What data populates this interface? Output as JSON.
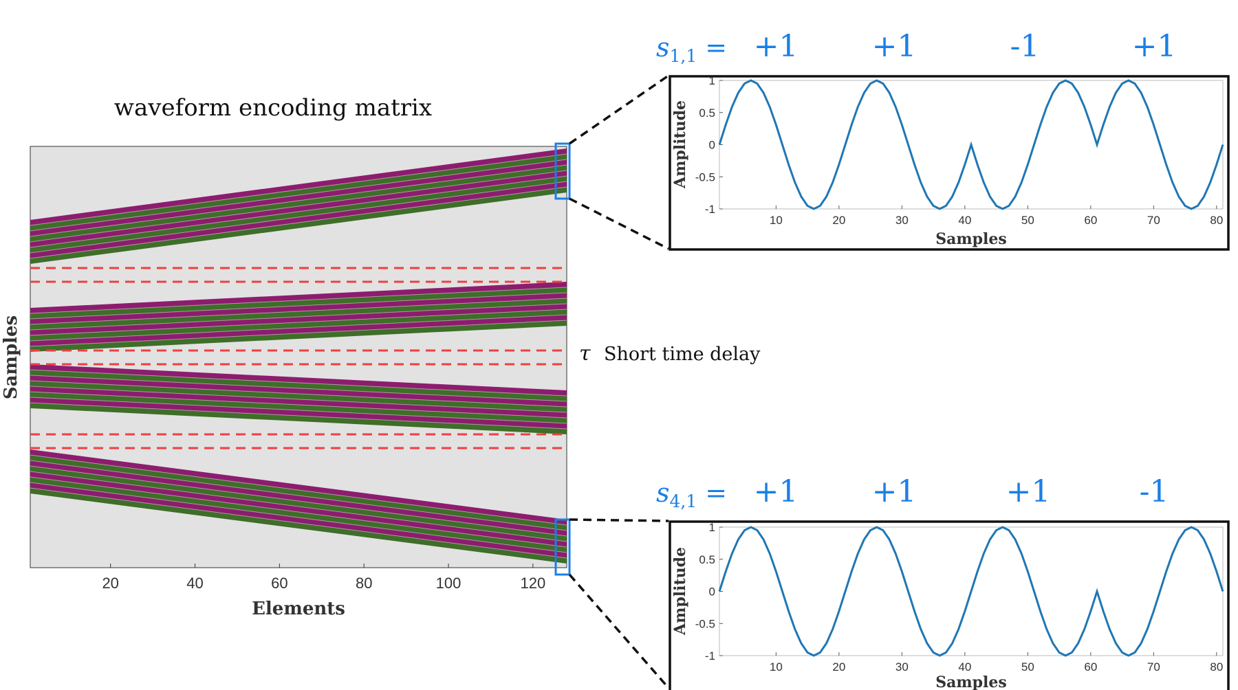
{
  "matrix": {
    "title": "waveform encoding matrix",
    "xlabel": "Elements",
    "ylabel": "Samples",
    "x_ticks": [
      "20",
      "40",
      "60",
      "80",
      "100",
      "120"
    ],
    "x_tick_values": [
      20,
      40,
      60,
      80,
      100,
      120
    ],
    "x_range": [
      1,
      128
    ],
    "colors": {
      "background": "#e2e2e2",
      "magenta": "#8c1d6e",
      "green": "#3e6e28",
      "red_dash": "#ee4040",
      "highlight": "#1a7fe6"
    }
  },
  "delay_annotation": {
    "symbol": "τ",
    "label": "Short time delay"
  },
  "codes": [
    {
      "prefix": "s",
      "subscript": "1,1",
      "equals": "=",
      "values": [
        "+1",
        "+1",
        "-1",
        "+1"
      ]
    },
    {
      "prefix": "s",
      "subscript": "4,1",
      "equals": "=",
      "values": [
        "+1",
        "+1",
        "+1",
        "-1"
      ]
    }
  ],
  "chart_data": [
    {
      "type": "line",
      "xlabel": "Samples",
      "ylabel": "Amplitude",
      "xlim": [
        1,
        81
      ],
      "ylim": [
        -1,
        1
      ],
      "x_ticks": [
        "10",
        "20",
        "30",
        "40",
        "50",
        "60",
        "70",
        "80"
      ],
      "y_ticks": [
        "1",
        "0.5",
        "0",
        "-0.5",
        "-1"
      ],
      "code": [
        1,
        1,
        -1,
        1
      ],
      "period_samples": 20,
      "line_color": "#1f77b4"
    },
    {
      "type": "line",
      "xlabel": "Samples",
      "ylabel": "Amplitude",
      "xlim": [
        1,
        81
      ],
      "ylim": [
        -1,
        1
      ],
      "x_ticks": [
        "10",
        "20",
        "30",
        "40",
        "50",
        "60",
        "70",
        "80"
      ],
      "y_ticks": [
        "1",
        "0.5",
        "0",
        "-0.5",
        "-1"
      ],
      "code": [
        1,
        1,
        1,
        -1
      ],
      "period_samples": 20,
      "line_color": "#1f77b4"
    }
  ]
}
